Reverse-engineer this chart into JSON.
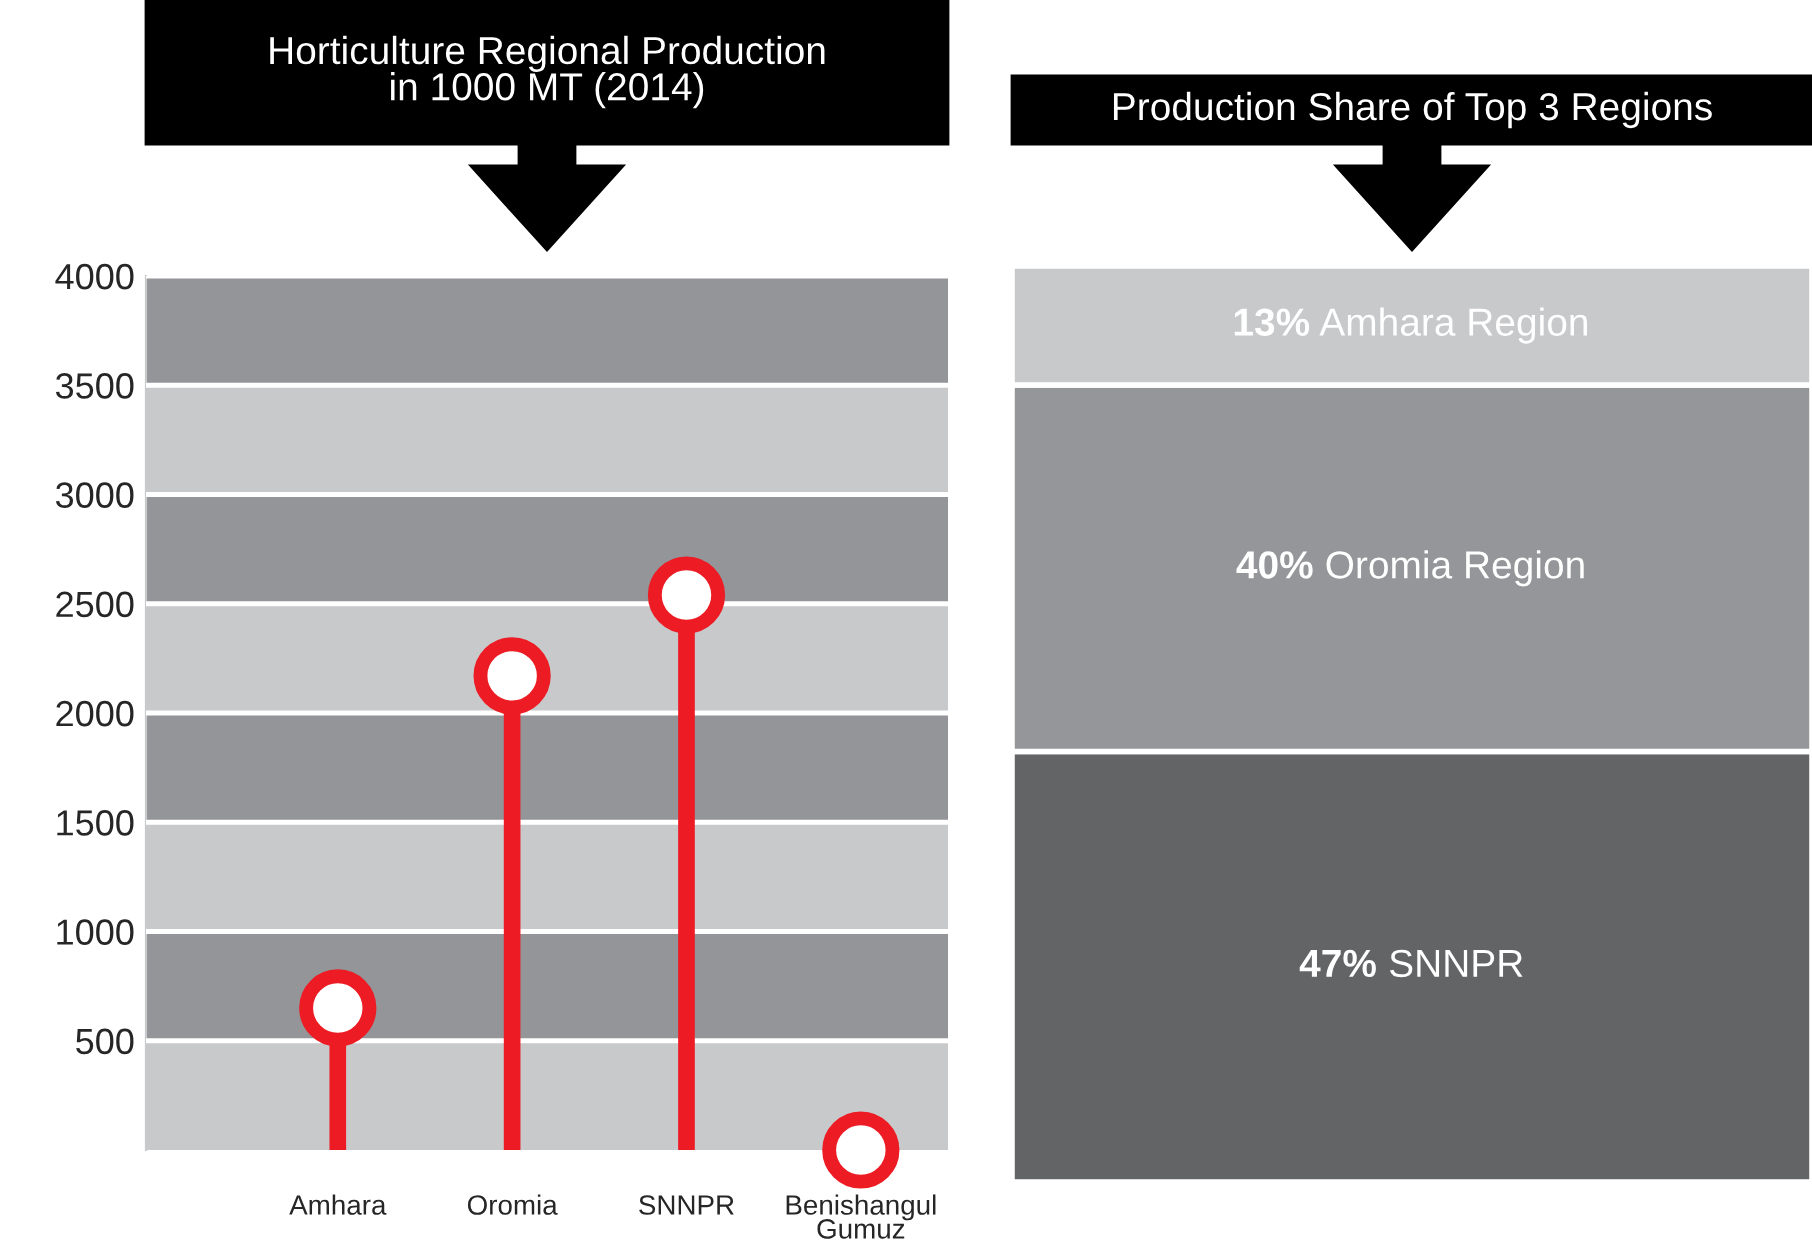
{
  "chart_data": [
    {
      "type": "lollipop",
      "title": "Horticulture Regional Production\nin 1000 MT (2014)",
      "categories": [
        "Amhara",
        "Oromia",
        "SNNPR",
        "Benishangul\nGumuz"
      ],
      "values": [
        650,
        2170,
        2540,
        0
      ],
      "color": "#ed1c24",
      "ylim": [
        0,
        4000
      ],
      "yticks": [
        500,
        1000,
        1500,
        2000,
        2500,
        3000,
        3500,
        4000
      ],
      "marker": "circle",
      "grid": "y",
      "bands": [
        {
          "axis": "y",
          "from": 0,
          "to": 500,
          "color": "#c8c9cb"
        },
        {
          "axis": "y",
          "from": 500,
          "to": 1000,
          "color": "#939598"
        },
        {
          "axis": "y",
          "from": 1000,
          "to": 1500,
          "color": "#c8c9cb"
        },
        {
          "axis": "y",
          "from": 1500,
          "to": 2000,
          "color": "#939598"
        },
        {
          "axis": "y",
          "from": 2000,
          "to": 2500,
          "color": "#c8c9cb"
        },
        {
          "axis": "y",
          "from": 2500,
          "to": 3000,
          "color": "#939598"
        },
        {
          "axis": "y",
          "from": 3000,
          "to": 3500,
          "color": "#c8c9cb"
        },
        {
          "axis": "y",
          "from": 3500,
          "to": 4000,
          "color": "#939598"
        }
      ]
    },
    {
      "type": "bar",
      "title": "Production Share of Top 3 Regions",
      "stacked": true,
      "ylim": [
        0,
        100
      ],
      "categories": [
        null
      ],
      "series": [
        {
          "name": "SNNPR",
          "color": "#636466",
          "values": [
            47
          ],
          "value_labels": [
            "47%"
          ]
        },
        {
          "name": "Oromia Region",
          "color": "#959699",
          "values": [
            40
          ],
          "value_labels": [
            "40%"
          ]
        },
        {
          "name": "Amhara Region",
          "color": "#c8c9cb",
          "values": [
            13
          ],
          "value_labels": [
            "13%"
          ]
        }
      ]
    }
  ]
}
